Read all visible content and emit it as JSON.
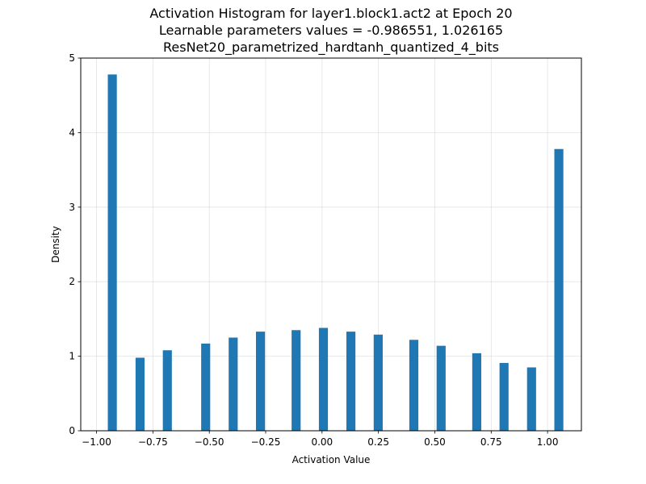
{
  "chart_data": {
    "type": "bar",
    "title_lines": [
      "Activation Histogram for layer1.block1.act2 at Epoch 20",
      "Learnable parameters values = -0.986551, 1.026165",
      "ResNet20_parametrized_hardtanh_quantized_4_bits"
    ],
    "xlabel": "Activation Value",
    "ylabel": "Density",
    "xlim": [
      -1.07,
      1.15
    ],
    "ylim": [
      0,
      5
    ],
    "x_ticks": [
      -1.0,
      -0.75,
      -0.5,
      -0.25,
      0.0,
      0.25,
      0.5,
      0.75,
      1.0
    ],
    "x_tick_labels": [
      "−1.00",
      "−0.75",
      "−0.50",
      "−0.25",
      "0.00",
      "0.25",
      "0.50",
      "0.75",
      "1.00"
    ],
    "y_ticks": [
      0,
      1,
      2,
      3,
      4,
      5
    ],
    "y_tick_labels": [
      "0",
      "1",
      "2",
      "3",
      "4",
      "5"
    ],
    "grid": true,
    "bar_color": "#1f77b4",
    "bar_width": 0.04,
    "bars": [
      {
        "x": -0.93,
        "value": 4.78
      },
      {
        "x": -0.807,
        "value": 0.98
      },
      {
        "x": -0.686,
        "value": 1.08
      },
      {
        "x": -0.516,
        "value": 1.17
      },
      {
        "x": -0.394,
        "value": 1.25
      },
      {
        "x": -0.273,
        "value": 1.33
      },
      {
        "x": -0.115,
        "value": 1.35
      },
      {
        "x": 0.006,
        "value": 1.38
      },
      {
        "x": 0.128,
        "value": 1.33
      },
      {
        "x": 0.249,
        "value": 1.29
      },
      {
        "x": 0.407,
        "value": 1.22
      },
      {
        "x": 0.528,
        "value": 1.14
      },
      {
        "x": 0.686,
        "value": 1.04
      },
      {
        "x": 0.807,
        "value": 0.91
      },
      {
        "x": 0.929,
        "value": 0.85
      },
      {
        "x": 1.05,
        "value": 3.78
      }
    ]
  }
}
